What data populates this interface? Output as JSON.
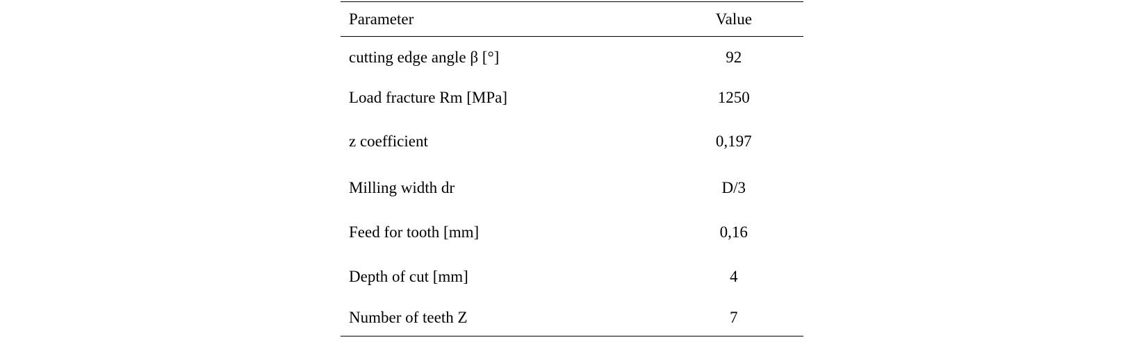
{
  "table": {
    "headers": {
      "parameter": "Parameter",
      "value": "Value"
    },
    "rows": [
      {
        "parameter": "cutting edge angle β [°]",
        "value": "92"
      },
      {
        "parameter": "Load fracture Rm [MPa]",
        "value": "1250"
      },
      {
        "parameter": "z coefficient",
        "value": "0,197"
      },
      {
        "parameter": "Milling width dr",
        "value": "D/3"
      },
      {
        "parameter": "Feed for tooth [mm]",
        "value": "0,16"
      },
      {
        "parameter": "Depth of cut [mm]",
        "value": "4"
      },
      {
        "parameter": "Number of teeth Z",
        "value": "7"
      }
    ]
  }
}
